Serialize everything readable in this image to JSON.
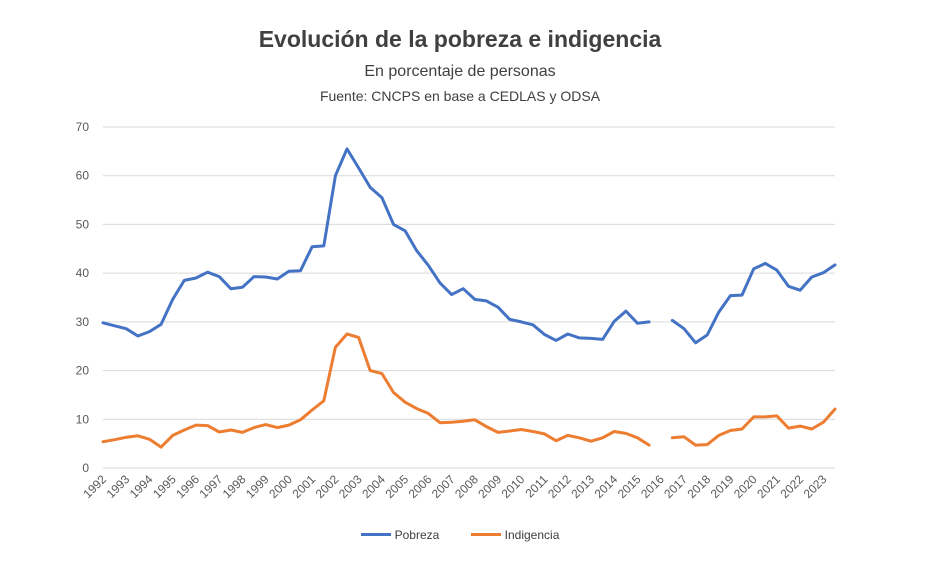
{
  "chart_data": {
    "type": "line",
    "title": "Evolución de la pobreza e indigencia",
    "subtitle": "En porcentaje de personas",
    "source": "Fuente: CNCPS en base a CEDLAS y ODSA",
    "xlabel": "",
    "ylabel": "",
    "ylim": [
      0,
      70
    ],
    "yticks": [
      0,
      10,
      20,
      30,
      40,
      50,
      60,
      70
    ],
    "grid": true,
    "legend_position": "bottom",
    "year_labels": [
      "1992",
      "1993",
      "1994",
      "1995",
      "1996",
      "1997",
      "1998",
      "1999",
      "2000",
      "2001",
      "2002",
      "2003",
      "2004",
      "2005",
      "2006",
      "2007",
      "2008",
      "2009",
      "2010",
      "2011",
      "2012",
      "2013",
      "2014",
      "2015",
      "2016",
      "2017",
      "2018",
      "2019",
      "2020",
      "2021",
      "2022",
      "2023"
    ],
    "x": [
      "1992-1",
      "1992-2",
      "1993-1",
      "1993-2",
      "1994-1",
      "1994-2",
      "1995-1",
      "1995-2",
      "1996-1",
      "1996-2",
      "1997-1",
      "1997-2",
      "1998-1",
      "1998-2",
      "1999-1",
      "1999-2",
      "2000-1",
      "2000-2",
      "2001-1",
      "2001-2",
      "2002-1",
      "2002-2",
      "2003-1",
      "2003-2",
      "2004-1",
      "2004-2",
      "2005-1",
      "2005-2",
      "2006-1",
      "2006-2",
      "2007-1",
      "2007-2",
      "2008-1",
      "2008-2",
      "2009-1",
      "2009-2",
      "2010-1",
      "2010-2",
      "2011-1",
      "2011-2",
      "2012-1",
      "2012-2",
      "2013-1",
      "2013-2",
      "2014-1",
      "2014-2",
      "2015-1",
      "2015-2",
      "2016-1",
      "2016-2",
      "2017-1",
      "2017-2",
      "2018-1",
      "2018-2",
      "2019-1",
      "2019-2",
      "2020-1",
      "2020-2",
      "2021-1",
      "2021-2",
      "2022-1",
      "2022-2",
      "2023-1",
      "2023-2"
    ],
    "series": [
      {
        "name": "Pobreza",
        "color": "#4472C4",
        "values": [
          29.8,
          29.2,
          28.6,
          27.1,
          28.0,
          29.5,
          34.6,
          38.5,
          39.0,
          40.2,
          39.3,
          36.8,
          37.1,
          39.3,
          39.2,
          38.8,
          40.4,
          40.5,
          45.4,
          45.6,
          60.0,
          65.5,
          61.6,
          57.6,
          55.5,
          50.0,
          48.7,
          44.6,
          41.6,
          38.0,
          35.6,
          36.8,
          34.6,
          34.3,
          33.0,
          30.5,
          30.0,
          29.4,
          27.4,
          26.2,
          27.5,
          26.7,
          26.6,
          26.4,
          30.1,
          32.2,
          29.7,
          30.0,
          null,
          30.3,
          28.6,
          25.7,
          27.3,
          32.0,
          35.4,
          35.5,
          40.9,
          42.0,
          40.6,
          37.3,
          36.5,
          39.2,
          40.1,
          41.7
        ]
      },
      {
        "name": "Indigencia",
        "color": "#ED7D31",
        "values": [
          5.4,
          5.8,
          6.3,
          6.6,
          5.9,
          4.3,
          6.7,
          7.8,
          8.8,
          8.7,
          7.4,
          7.8,
          7.3,
          8.3,
          8.9,
          8.3,
          8.8,
          9.9,
          11.9,
          13.8,
          24.8,
          27.5,
          26.8,
          20.0,
          19.4,
          15.5,
          13.5,
          12.2,
          11.2,
          9.3,
          9.4,
          9.6,
          9.9,
          8.5,
          7.3,
          7.6,
          7.9,
          7.5,
          7.0,
          5.6,
          6.7,
          6.2,
          5.5,
          6.2,
          7.5,
          7.1,
          6.2,
          4.7,
          null,
          6.2,
          6.4,
          4.7,
          4.8,
          6.7,
          7.7,
          8.0,
          10.5,
          10.5,
          10.7,
          8.2,
          8.6,
          8.0,
          9.4,
          12.1
        ]
      }
    ]
  }
}
